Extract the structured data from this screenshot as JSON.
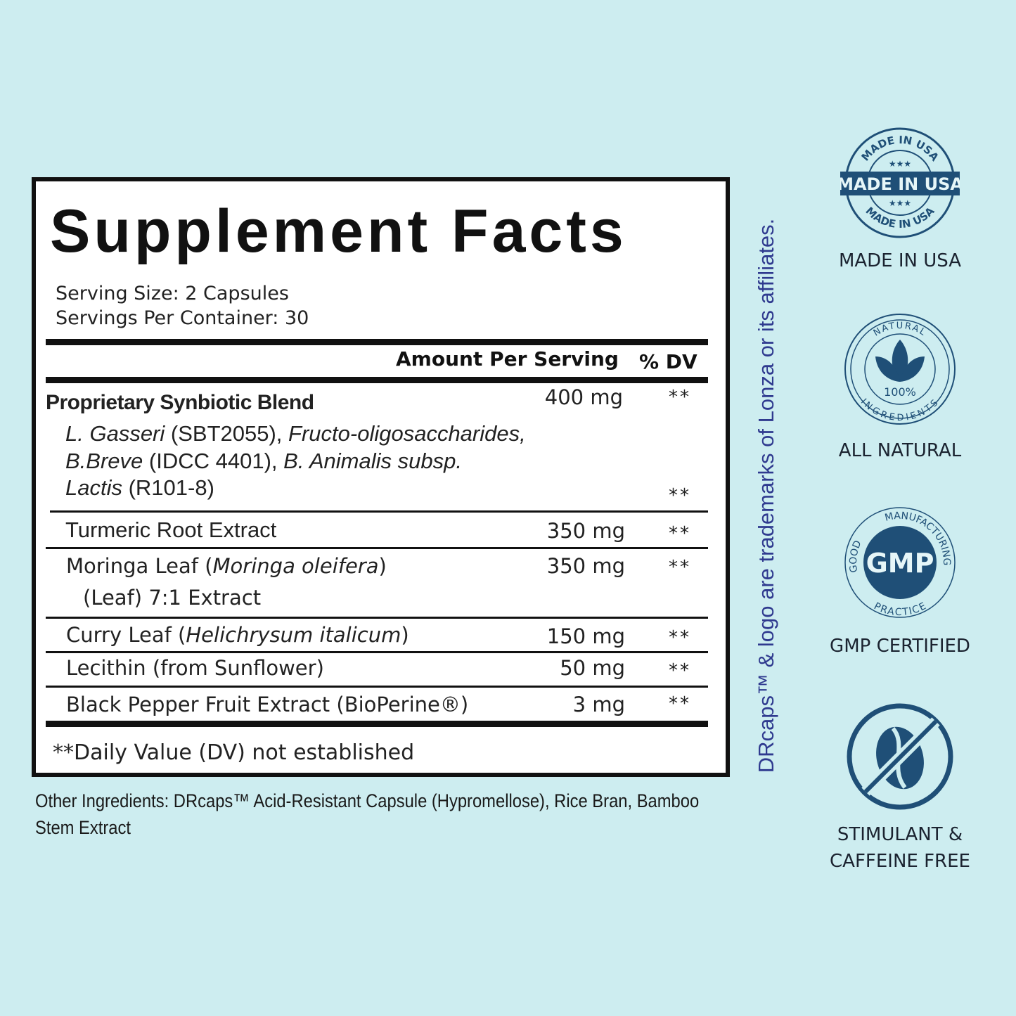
{
  "facts": {
    "title": "Supplement Facts",
    "serving_size": "Serving Size: 2 Capsules",
    "servings_per_container": "Servings Per Container: 30",
    "header_amount": "Amount Per Serving",
    "header_dv": "% DV",
    "rows": [
      {
        "name": "Proprietary Synbiotic Blend",
        "amount": "400 mg",
        "dv": "**",
        "sub": [
          {
            "italic": "L. Gasseri",
            "plain": " (SBT2055), ",
            "italic2": "Fructo-oligosaccharides,"
          },
          {
            "italic": "B.Breve",
            "plain": " (IDCC 4401), ",
            "italic2": "B. Animalis subsp."
          },
          {
            "italic": "Lactis",
            "plain": " (R101-8)",
            "italic2": ""
          }
        ],
        "sub_dv": "**"
      },
      {
        "name": "Turmeric Root Extract",
        "amount": "350 mg",
        "dv": "**"
      },
      {
        "name": "Moringa Leaf (",
        "italic": "Moringa oleifera",
        "name_end": ")",
        "line2": "(Leaf) 7:1 Extract",
        "amount": "350 mg",
        "dv": "**"
      },
      {
        "name": "Curry Leaf (",
        "italic": "Helichrysum italicum",
        "name_end": ")",
        "amount": "150 mg",
        "dv": "**"
      },
      {
        "name": "Lecithin (from Sunflower)",
        "amount": "50 mg",
        "dv": "**"
      },
      {
        "name": "Black Pepper Fruit Extract (BioPerine®)",
        "amount": "3 mg",
        "dv": "**"
      }
    ],
    "footnote": "**Daily Value (DV) not established"
  },
  "other_ingredients": "Other Ingredients: DRcaps™ Acid-Resistant Capsule (Hypromellose), Rice Bran, Bamboo Stem Extract",
  "trademark": "DRcaps™ & logo are trademarks of Lonza or its affiliates.",
  "badges": [
    {
      "icon": "made-in-usa-seal-icon",
      "seal_text": "MADE IN USA",
      "label": "MADE IN USA"
    },
    {
      "icon": "natural-leaf-seal-icon",
      "seal_top": "NATURAL",
      "seal_center": "100%",
      "seal_bottom": "INGREDIENTS",
      "label": "ALL NATURAL"
    },
    {
      "icon": "gmp-seal-icon",
      "seal_top": "MANUFACTURING",
      "seal_left": "GOOD",
      "seal_center": "GMP",
      "seal_bottom": "PRACTICE",
      "label": "GMP CERTIFIED"
    },
    {
      "icon": "no-caffeine-bean-icon",
      "label_line1": "STIMULANT &",
      "label_line2": "CAFFEINE FREE"
    }
  ],
  "colors": {
    "background": "#cdedf0",
    "badge_blue": "#1f4f77",
    "trademark_text": "#2f3a8f"
  }
}
